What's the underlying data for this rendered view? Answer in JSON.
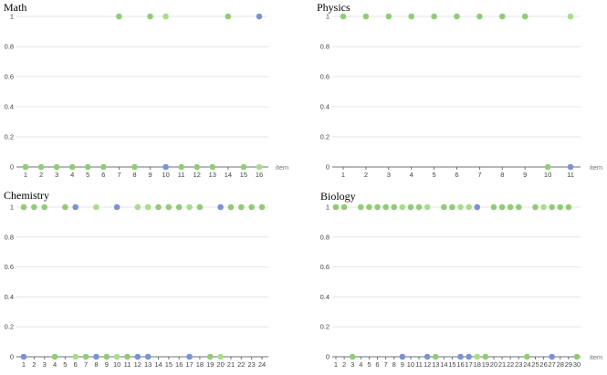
{
  "chart_data": [
    {
      "type": "scatter",
      "title": "Math",
      "xlabel": "item",
      "xlim": [
        1,
        16
      ],
      "ylim": [
        0,
        1
      ],
      "yticks": [
        "0",
        "0.2",
        "0.4",
        "0.6",
        "0.8",
        "1"
      ],
      "points": [
        {
          "x": 1,
          "y": 0,
          "c": "g"
        },
        {
          "x": 2,
          "y": 0,
          "c": "g"
        },
        {
          "x": 3,
          "y": 0,
          "c": "g"
        },
        {
          "x": 4,
          "y": 0,
          "c": "g"
        },
        {
          "x": 5,
          "y": 0,
          "c": "g"
        },
        {
          "x": 6,
          "y": 0,
          "c": "g"
        },
        {
          "x": 7,
          "y": 1,
          "c": "g"
        },
        {
          "x": 8,
          "y": 0,
          "c": "g"
        },
        {
          "x": 9,
          "y": 1,
          "c": "g"
        },
        {
          "x": 10,
          "y": 1,
          "c": "l"
        },
        {
          "x": 10,
          "y": 0,
          "c": "b"
        },
        {
          "x": 11,
          "y": 0,
          "c": "g"
        },
        {
          "x": 12,
          "y": 0,
          "c": "g"
        },
        {
          "x": 13,
          "y": 0,
          "c": "g"
        },
        {
          "x": 14,
          "y": 1,
          "c": "g"
        },
        {
          "x": 15,
          "y": 0,
          "c": "g"
        },
        {
          "x": 16,
          "y": 1,
          "c": "b"
        },
        {
          "x": 16,
          "y": 0,
          "c": "l"
        }
      ]
    },
    {
      "type": "scatter",
      "title": "Physics",
      "xlabel": "item",
      "xlim": [
        1,
        11
      ],
      "ylim": [
        0,
        1
      ],
      "yticks": [
        "0",
        "0.2",
        "0.4",
        "0.6",
        "0.8",
        "1"
      ],
      "points": [
        {
          "x": 1,
          "y": 1,
          "c": "g"
        },
        {
          "x": 2,
          "y": 1,
          "c": "g"
        },
        {
          "x": 3,
          "y": 1,
          "c": "g"
        },
        {
          "x": 4,
          "y": 1,
          "c": "g"
        },
        {
          "x": 5,
          "y": 1,
          "c": "g"
        },
        {
          "x": 6,
          "y": 1,
          "c": "g"
        },
        {
          "x": 7,
          "y": 1,
          "c": "g"
        },
        {
          "x": 8,
          "y": 1,
          "c": "g"
        },
        {
          "x": 9,
          "y": 1,
          "c": "g"
        },
        {
          "x": 10,
          "y": 0,
          "c": "g"
        },
        {
          "x": 11,
          "y": 1,
          "c": "l"
        },
        {
          "x": 11,
          "y": 0,
          "c": "b"
        }
      ]
    },
    {
      "type": "scatter",
      "title": "Chemistry",
      "xlabel": "",
      "xlim": [
        1,
        24
      ],
      "ylim": [
        0,
        1
      ],
      "yticks": [
        "0",
        "0.2",
        "0.4",
        "0.6",
        "0.8",
        "1"
      ],
      "points": [
        {
          "x": 1,
          "y": 1,
          "c": "g"
        },
        {
          "x": 1,
          "y": 0,
          "c": "b"
        },
        {
          "x": 2,
          "y": 1,
          "c": "g"
        },
        {
          "x": 3,
          "y": 1,
          "c": "g"
        },
        {
          "x": 4,
          "y": 0,
          "c": "g"
        },
        {
          "x": 5,
          "y": 1,
          "c": "g"
        },
        {
          "x": 6,
          "y": 1,
          "c": "b"
        },
        {
          "x": 6,
          "y": 0,
          "c": "l"
        },
        {
          "x": 7,
          "y": 0,
          "c": "g"
        },
        {
          "x": 8,
          "y": 1,
          "c": "l"
        },
        {
          "x": 8,
          "y": 0,
          "c": "b"
        },
        {
          "x": 9,
          "y": 0,
          "c": "g"
        },
        {
          "x": 10,
          "y": 1,
          "c": "b"
        },
        {
          "x": 10,
          "y": 0,
          "c": "l"
        },
        {
          "x": 11,
          "y": 0,
          "c": "g"
        },
        {
          "x": 12,
          "y": 1,
          "c": "l"
        },
        {
          "x": 12,
          "y": 0,
          "c": "b"
        },
        {
          "x": 13,
          "y": 1,
          "c": "l"
        },
        {
          "x": 13,
          "y": 0,
          "c": "b"
        },
        {
          "x": 14,
          "y": 1,
          "c": "g"
        },
        {
          "x": 15,
          "y": 1,
          "c": "g"
        },
        {
          "x": 16,
          "y": 1,
          "c": "g"
        },
        {
          "x": 17,
          "y": 1,
          "c": "l"
        },
        {
          "x": 17,
          "y": 0,
          "c": "b"
        },
        {
          "x": 18,
          "y": 1,
          "c": "g"
        },
        {
          "x": 19,
          "y": 0,
          "c": "g"
        },
        {
          "x": 20,
          "y": 1,
          "c": "b"
        },
        {
          "x": 20,
          "y": 0,
          "c": "l"
        },
        {
          "x": 21,
          "y": 1,
          "c": "g"
        },
        {
          "x": 22,
          "y": 1,
          "c": "g"
        },
        {
          "x": 23,
          "y": 1,
          "c": "g"
        },
        {
          "x": 24,
          "y": 1,
          "c": "g"
        }
      ]
    },
    {
      "type": "scatter",
      "title": "Biology",
      "xlabel": "item",
      "xlim": [
        1,
        30
      ],
      "ylim": [
        0,
        1
      ],
      "yticks": [
        "0",
        "0.2",
        "0.4",
        "0.6",
        "0.8",
        "1"
      ],
      "points": [
        {
          "x": 1,
          "y": 1,
          "c": "g"
        },
        {
          "x": 2,
          "y": 1,
          "c": "g"
        },
        {
          "x": 3,
          "y": 0,
          "c": "g"
        },
        {
          "x": 4,
          "y": 1,
          "c": "g"
        },
        {
          "x": 5,
          "y": 1,
          "c": "g"
        },
        {
          "x": 6,
          "y": 1,
          "c": "g"
        },
        {
          "x": 7,
          "y": 1,
          "c": "g"
        },
        {
          "x": 8,
          "y": 1,
          "c": "g"
        },
        {
          "x": 9,
          "y": 1,
          "c": "l"
        },
        {
          "x": 9,
          "y": 0,
          "c": "b"
        },
        {
          "x": 10,
          "y": 1,
          "c": "g"
        },
        {
          "x": 11,
          "y": 1,
          "c": "g"
        },
        {
          "x": 12,
          "y": 1,
          "c": "l"
        },
        {
          "x": 12,
          "y": 0,
          "c": "b"
        },
        {
          "x": 13,
          "y": 0,
          "c": "g"
        },
        {
          "x": 14,
          "y": 1,
          "c": "g"
        },
        {
          "x": 15,
          "y": 1,
          "c": "g"
        },
        {
          "x": 16,
          "y": 1,
          "c": "l"
        },
        {
          "x": 16,
          "y": 0,
          "c": "b"
        },
        {
          "x": 17,
          "y": 1,
          "c": "l"
        },
        {
          "x": 17,
          "y": 0,
          "c": "b"
        },
        {
          "x": 18,
          "y": 1,
          "c": "b"
        },
        {
          "x": 18,
          "y": 0,
          "c": "l"
        },
        {
          "x": 19,
          "y": 0,
          "c": "g"
        },
        {
          "x": 20,
          "y": 1,
          "c": "g"
        },
        {
          "x": 21,
          "y": 1,
          "c": "g"
        },
        {
          "x": 22,
          "y": 1,
          "c": "g"
        },
        {
          "x": 23,
          "y": 1,
          "c": "g"
        },
        {
          "x": 24,
          "y": 0,
          "c": "g"
        },
        {
          "x": 25,
          "y": 1,
          "c": "g"
        },
        {
          "x": 26,
          "y": 1,
          "c": "l"
        },
        {
          "x": 27,
          "y": 1,
          "c": "g"
        },
        {
          "x": 27,
          "y": 0,
          "c": "b"
        },
        {
          "x": 28,
          "y": 1,
          "c": "g"
        },
        {
          "x": 29,
          "y": 1,
          "c": "g"
        },
        {
          "x": 30,
          "y": 0,
          "c": "g"
        }
      ]
    }
  ],
  "colors": {
    "g": "#91cc75",
    "l": "#a7dd8c",
    "b": "#7b93d3",
    "grid": "#e6e6e6",
    "axis": "#6e7079"
  }
}
